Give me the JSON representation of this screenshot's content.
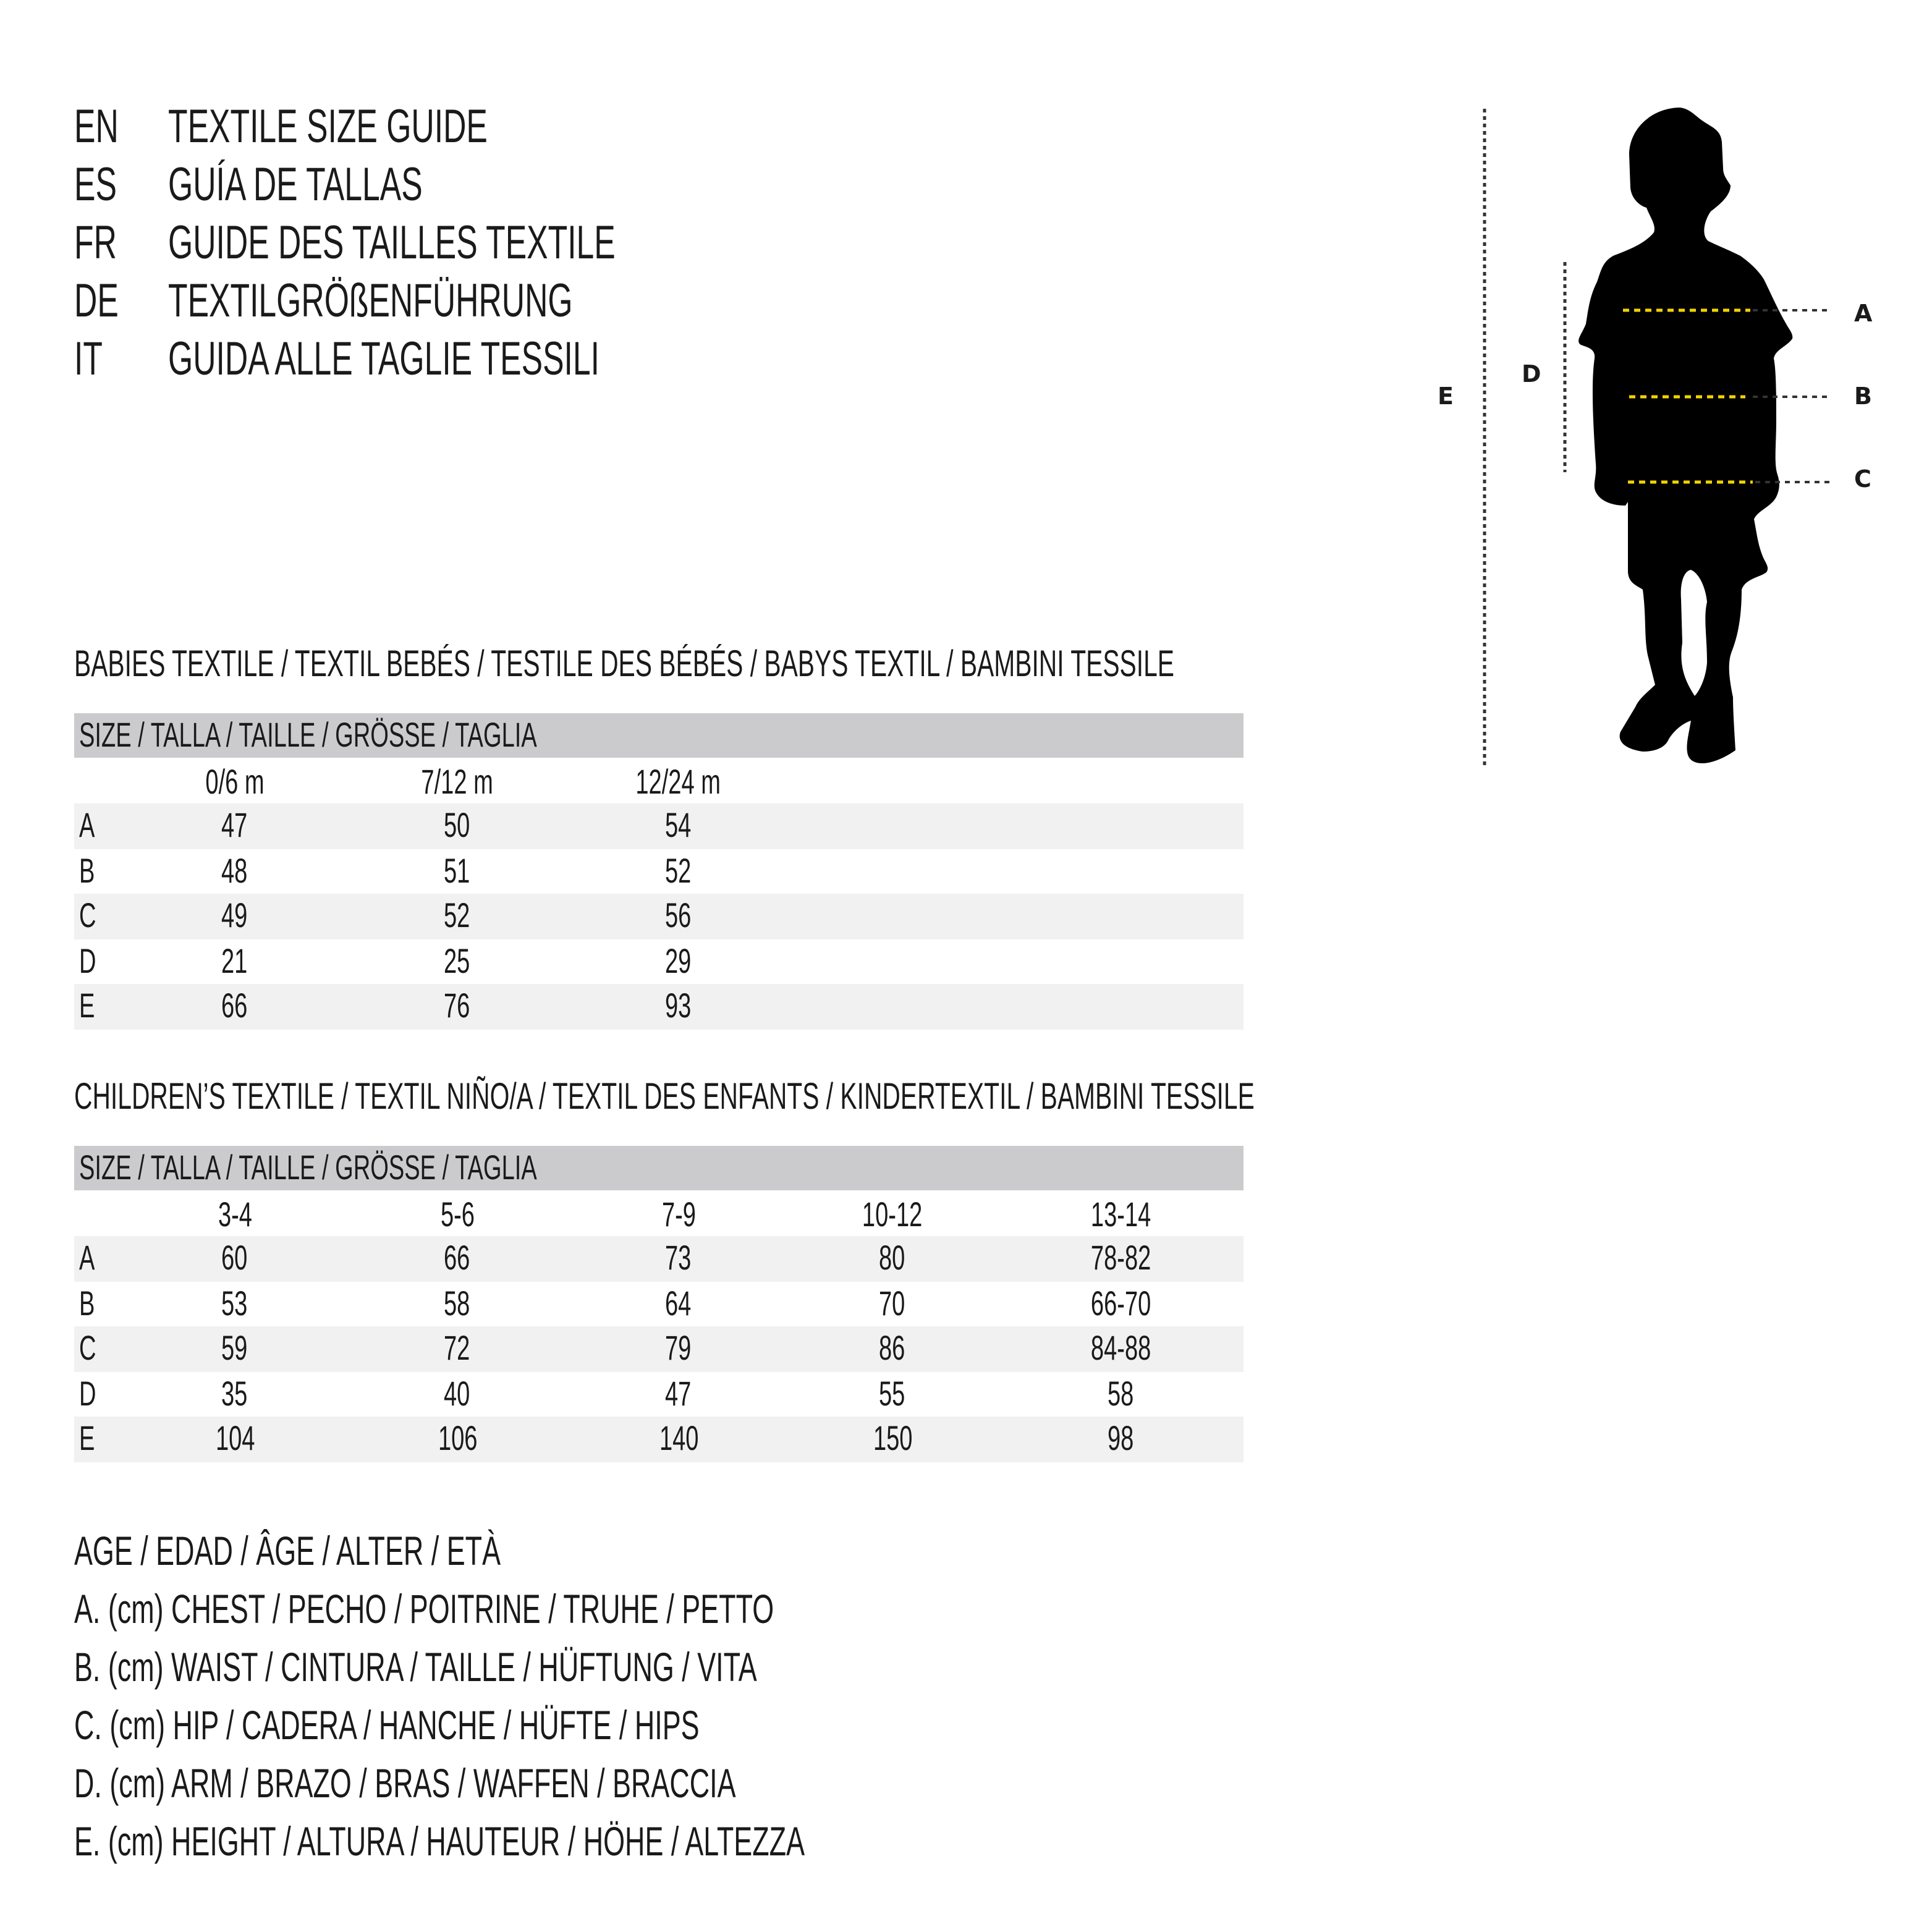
{
  "title_lines": [
    {
      "lang": "EN",
      "text": "TEXTILE SIZE GUIDE"
    },
    {
      "lang": "ES",
      "text": "GUÍA DE TALLAS"
    },
    {
      "lang": "FR",
      "text": "GUIDE DES TAILLES TEXTILE"
    },
    {
      "lang": "DE",
      "text": "TEXTILGRÖßENFÜHRUNG"
    },
    {
      "lang": "IT",
      "text": "GUIDA ALLE TAGLIE TESSILI"
    }
  ],
  "babies": {
    "heading": "BABIES TEXTILE / TEXTIL BEBÉS / TESTILE DES BÉBÉS / BABYS TEXTIL / BAMBINI TESSILE",
    "size_label": "SIZE / TALLA / TAILLE / GRÖSSE / TAGLIA",
    "columns": [
      "0/6 m",
      "7/12 m",
      "12/24 m"
    ],
    "rows": [
      {
        "label": "A",
        "values": [
          "47",
          "50",
          "54"
        ]
      },
      {
        "label": "B",
        "values": [
          "48",
          "51",
          "52"
        ]
      },
      {
        "label": "C",
        "values": [
          "49",
          "52",
          "56"
        ]
      },
      {
        "label": "D",
        "values": [
          "21",
          "25",
          "29"
        ]
      },
      {
        "label": "E",
        "values": [
          "66",
          "76",
          "93"
        ]
      }
    ]
  },
  "children": {
    "heading": "CHILDREN’S TEXTILE / TEXTIL NIÑO/A / TEXTIL DES ENFANTS / KINDERTEXTIL / BAMBINI TESSILE",
    "size_label": "SIZE / TALLA / TAILLE / GRÖSSE / TAGLIA",
    "columns": [
      "3-4",
      "5-6",
      "7-9",
      "10-12",
      "13-14"
    ],
    "rows": [
      {
        "label": "A",
        "values": [
          "60",
          "66",
          "73",
          "80",
          "78-82"
        ]
      },
      {
        "label": "B",
        "values": [
          "53",
          "58",
          "64",
          "70",
          "66-70"
        ]
      },
      {
        "label": "C",
        "values": [
          "59",
          "72",
          "79",
          "86",
          "84-88"
        ]
      },
      {
        "label": "D",
        "values": [
          "35",
          "40",
          "47",
          "55",
          "58"
        ]
      },
      {
        "label": "E",
        "values": [
          "104",
          "106",
          "140",
          "150",
          "98"
        ]
      }
    ]
  },
  "legend": [
    "AGE / EDAD / ÂGE / ALTER / ETÀ",
    "A. (cm) CHEST / PECHO / POITRINE / TRUHE / PETTO",
    "B. (cm) WAIST / CINTURA / TAILLE / HÜFTUNG / VITA",
    "C. (cm) HIP / CADERA / HANCHE / HÜFTE / HIPS",
    "D. (cm) ARM / BRAZO / BRAS / WAFFEN / BRACCIA",
    "E. (cm) HEIGHT / ALTURA / HAUTEUR / HÖHE / ALTEZZA"
  ],
  "figure": {
    "labels": {
      "a": "A",
      "b": "B",
      "c": "C",
      "d": "D",
      "e": "E"
    },
    "icon": "child-silhouette-icon",
    "colors": {
      "measure_line": "#f2d400",
      "guide_line": "#333333",
      "silhouette": "#000000",
      "header_bar": "#cbcbcd",
      "stripe": "#f1f1f1"
    }
  }
}
